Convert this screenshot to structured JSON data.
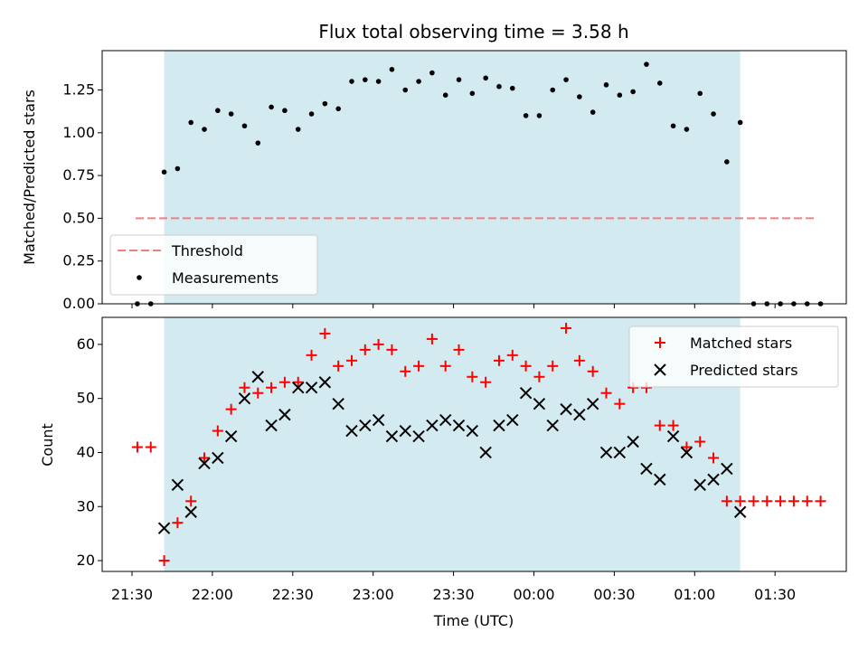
{
  "chart_data": [
    {
      "type": "scatter",
      "title": "Flux total observing time = 3.58 h",
      "xlabel": "",
      "ylabel": "Matched/Predicted stars",
      "ylim": [
        0,
        1.48
      ],
      "yticks": [
        "0.00",
        "0.25",
        "0.50",
        "0.75",
        "1.00",
        "1.25"
      ],
      "ytick_values": [
        0,
        0.25,
        0.5,
        0.75,
        1.0,
        1.25
      ],
      "threshold": 0.5,
      "threshold_color": "#f08080",
      "marker_color": "#000000",
      "shade_color": "#d3eaf0",
      "legend": {
        "placement": "lower-left",
        "entries": [
          "Threshold",
          "Measurements"
        ]
      },
      "series": [
        {
          "name": "Measurements",
          "points": [
            [
              "21:32",
              0.0
            ],
            [
              "21:37",
              0.0
            ],
            [
              "21:42",
              0.77
            ],
            [
              "21:47",
              0.79
            ],
            [
              "21:52",
              1.06
            ],
            [
              "21:57",
              1.02
            ],
            [
              "22:02",
              1.13
            ],
            [
              "22:07",
              1.11
            ],
            [
              "22:12",
              1.04
            ],
            [
              "22:17",
              0.94
            ],
            [
              "22:22",
              1.15
            ],
            [
              "22:27",
              1.13
            ],
            [
              "22:32",
              1.02
            ],
            [
              "22:37",
              1.11
            ],
            [
              "22:42",
              1.17
            ],
            [
              "22:47",
              1.14
            ],
            [
              "22:52",
              1.3
            ],
            [
              "22:57",
              1.31
            ],
            [
              "23:02",
              1.3
            ],
            [
              "23:07",
              1.37
            ],
            [
              "23:12",
              1.25
            ],
            [
              "23:17",
              1.3
            ],
            [
              "23:22",
              1.35
            ],
            [
              "23:27",
              1.22
            ],
            [
              "23:32",
              1.31
            ],
            [
              "23:37",
              1.23
            ],
            [
              "23:42",
              1.32
            ],
            [
              "23:47",
              1.27
            ],
            [
              "23:52",
              1.26
            ],
            [
              "23:57",
              1.1
            ],
            [
              "00:02",
              1.1
            ],
            [
              "00:07",
              1.25
            ],
            [
              "00:12",
              1.31
            ],
            [
              "00:17",
              1.21
            ],
            [
              "00:22",
              1.12
            ],
            [
              "00:27",
              1.28
            ],
            [
              "00:32",
              1.22
            ],
            [
              "00:37",
              1.24
            ],
            [
              "00:42",
              1.4
            ],
            [
              "00:47",
              1.29
            ],
            [
              "00:52",
              1.04
            ],
            [
              "00:57",
              1.02
            ],
            [
              "01:02",
              1.23
            ],
            [
              "01:07",
              1.11
            ],
            [
              "01:12",
              0.83
            ],
            [
              "01:17",
              1.06
            ],
            [
              "01:22",
              0.0
            ],
            [
              "01:27",
              0.0
            ],
            [
              "01:32",
              0.0
            ],
            [
              "01:37",
              0.0
            ],
            [
              "01:42",
              0.0
            ],
            [
              "01:47",
              0.0
            ]
          ]
        }
      ]
    },
    {
      "type": "scatter",
      "xlabel": "Time (UTC)",
      "ylabel": "Count",
      "ylim": [
        18,
        65
      ],
      "yticks": [
        "20",
        "30",
        "40",
        "50",
        "60"
      ],
      "ytick_values": [
        20,
        30,
        40,
        50,
        60
      ],
      "xticks": [
        "21:30",
        "22:00",
        "22:30",
        "23:00",
        "23:30",
        "00:00",
        "00:30",
        "01:00",
        "01:30"
      ],
      "legend": {
        "placement": "upper-right",
        "entries": [
          "Matched stars",
          "Predicted stars"
        ]
      },
      "series": [
        {
          "name": "Matched stars",
          "color": "#ff0000",
          "marker": "plus",
          "points": [
            [
              "21:32",
              41
            ],
            [
              "21:37",
              41
            ],
            [
              "21:42",
              20
            ],
            [
              "21:47",
              27
            ],
            [
              "21:52",
              31
            ],
            [
              "21:57",
              39
            ],
            [
              "22:02",
              44
            ],
            [
              "22:07",
              48
            ],
            [
              "22:12",
              52
            ],
            [
              "22:17",
              51
            ],
            [
              "22:22",
              52
            ],
            [
              "22:27",
              53
            ],
            [
              "22:32",
              53
            ],
            [
              "22:37",
              58
            ],
            [
              "22:42",
              62
            ],
            [
              "22:47",
              56
            ],
            [
              "22:52",
              57
            ],
            [
              "22:57",
              59
            ],
            [
              "23:02",
              60
            ],
            [
              "23:07",
              59
            ],
            [
              "23:12",
              55
            ],
            [
              "23:17",
              56
            ],
            [
              "23:22",
              61
            ],
            [
              "23:27",
              56
            ],
            [
              "23:32",
              59
            ],
            [
              "23:37",
              54
            ],
            [
              "23:42",
              53
            ],
            [
              "23:47",
              57
            ],
            [
              "23:52",
              58
            ],
            [
              "23:57",
              56
            ],
            [
              "00:02",
              54
            ],
            [
              "00:07",
              56
            ],
            [
              "00:12",
              63
            ],
            [
              "00:17",
              57
            ],
            [
              "00:22",
              55
            ],
            [
              "00:27",
              51
            ],
            [
              "00:32",
              49
            ],
            [
              "00:37",
              52
            ],
            [
              "00:42",
              52
            ],
            [
              "00:47",
              45
            ],
            [
              "00:52",
              45
            ],
            [
              "00:57",
              41
            ],
            [
              "01:02",
              42
            ],
            [
              "01:07",
              39
            ],
            [
              "01:12",
              31
            ],
            [
              "01:17",
              31
            ],
            [
              "01:22",
              31
            ],
            [
              "01:27",
              31
            ],
            [
              "01:32",
              31
            ],
            [
              "01:37",
              31
            ],
            [
              "01:42",
              31
            ],
            [
              "01:47",
              31
            ]
          ]
        },
        {
          "name": "Predicted stars",
          "color": "#000000",
          "marker": "x",
          "points": [
            [
              "21:42",
              26
            ],
            [
              "21:47",
              34
            ],
            [
              "21:52",
              29
            ],
            [
              "21:57",
              38
            ],
            [
              "22:02",
              39
            ],
            [
              "22:07",
              43
            ],
            [
              "22:12",
              50
            ],
            [
              "22:17",
              54
            ],
            [
              "22:22",
              45
            ],
            [
              "22:27",
              47
            ],
            [
              "22:32",
              52
            ],
            [
              "22:37",
              52
            ],
            [
              "22:42",
              53
            ],
            [
              "22:47",
              49
            ],
            [
              "22:52",
              44
            ],
            [
              "22:57",
              45
            ],
            [
              "23:02",
              46
            ],
            [
              "23:07",
              43
            ],
            [
              "23:12",
              44
            ],
            [
              "23:17",
              43
            ],
            [
              "23:22",
              45
            ],
            [
              "23:27",
              46
            ],
            [
              "23:32",
              45
            ],
            [
              "23:37",
              44
            ],
            [
              "23:42",
              40
            ],
            [
              "23:47",
              45
            ],
            [
              "23:52",
              46
            ],
            [
              "23:57",
              51
            ],
            [
              "00:02",
              49
            ],
            [
              "00:07",
              45
            ],
            [
              "00:12",
              48
            ],
            [
              "00:17",
              47
            ],
            [
              "00:22",
              49
            ],
            [
              "00:27",
              40
            ],
            [
              "00:32",
              40
            ],
            [
              "00:37",
              42
            ],
            [
              "00:42",
              37
            ],
            [
              "00:47",
              35
            ],
            [
              "00:52",
              43
            ],
            [
              "00:57",
              40
            ],
            [
              "01:02",
              34
            ],
            [
              "01:07",
              35
            ],
            [
              "01:12",
              37
            ],
            [
              "01:17",
              29
            ]
          ]
        }
      ]
    }
  ],
  "shaded_interval": [
    "21:42",
    "01:17"
  ]
}
